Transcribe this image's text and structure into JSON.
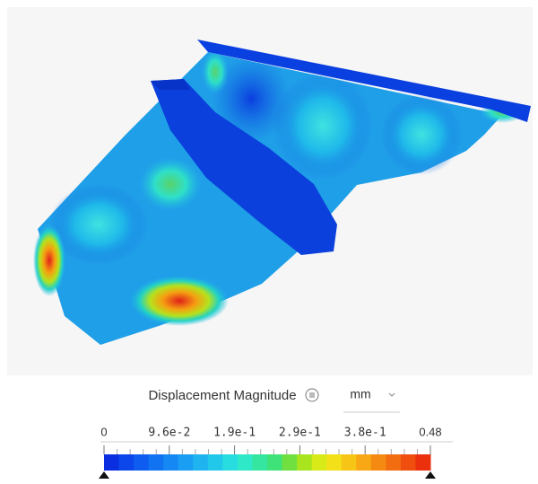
{
  "legend": {
    "title": "Displacement Magnitude",
    "unit": "mm",
    "ticks": [
      "0",
      "9.6e-2",
      "1.9e-1",
      "2.9e-1",
      "3.8e-1",
      "0.48"
    ]
  }
}
